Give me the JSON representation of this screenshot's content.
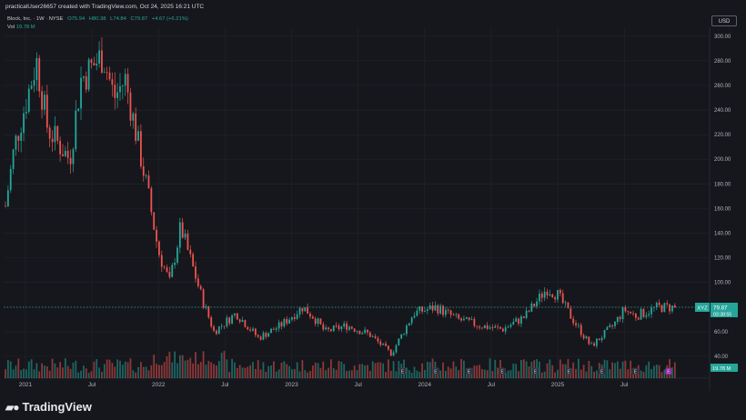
{
  "header": {
    "title": "practicalUser26657 created with TradingView.com, Oct 24, 2025 16:21 UTC"
  },
  "legend": {
    "symbol": "Block, Inc. · 1W · NYSE",
    "open": "O75.94",
    "high": "H80.38",
    "low": "L74.84",
    "close": "C79.87",
    "change": "+4.67 (+6.21%)",
    "vol_label": "Vol",
    "vol_value": "19.78 M"
  },
  "currency_button": "USD",
  "price_label": {
    "ticker": "XYZ",
    "price": "79.87",
    "countdown": "03:38:55"
  },
  "volume_label": "19.78 M",
  "footer": {
    "brand": "TradingView"
  },
  "colors": {
    "up": "#26a69a",
    "down": "#ef5350",
    "background": "#15171c",
    "grid": "#22252c",
    "price_line": "#26a69a"
  },
  "chart_data": {
    "type": "candlestick",
    "y_axis": {
      "ticks": [
        40,
        60,
        80,
        100,
        120,
        140,
        160,
        180,
        200,
        220,
        240,
        260,
        280,
        300
      ],
      "ylim": [
        40,
        305
      ],
      "position": "right"
    },
    "x_axis": {
      "labels": [
        "2021",
        "Jul",
        "2022",
        "Jul",
        "2023",
        "Jul",
        "2024",
        "Jul",
        "2025",
        "Jul"
      ]
    },
    "last_close": 79.87,
    "path": [
      [
        "2020-11",
        150
      ],
      [
        "2020-12",
        210
      ],
      [
        "2021-02",
        280
      ],
      [
        "2021-03",
        225
      ],
      [
        "2021-05",
        200
      ],
      [
        "2021-06",
        265
      ],
      [
        "2021-08",
        285
      ],
      [
        "2021-09",
        250
      ],
      [
        "2021-10",
        265
      ],
      [
        "2021-12",
        175
      ],
      [
        "2022-01",
        125
      ],
      [
        "2022-02",
        100
      ],
      [
        "2022-03",
        145
      ],
      [
        "2022-05",
        85
      ],
      [
        "2022-06",
        60
      ],
      [
        "2022-08",
        75
      ],
      [
        "2022-10",
        55
      ],
      [
        "2022-12",
        65
      ],
      [
        "2023-02",
        80
      ],
      [
        "2023-03",
        72
      ],
      [
        "2023-04",
        60
      ],
      [
        "2023-06",
        65
      ],
      [
        "2023-08",
        58
      ],
      [
        "2023-10",
        42
      ],
      [
        "2023-12",
        75
      ],
      [
        "2024-02",
        80
      ],
      [
        "2024-04",
        70
      ],
      [
        "2024-06",
        65
      ],
      [
        "2024-08",
        62
      ],
      [
        "2024-10",
        72
      ],
      [
        "2024-12",
        95
      ],
      [
        "2025-01",
        90
      ],
      [
        "2025-02",
        75
      ],
      [
        "2025-04",
        48
      ],
      [
        "2025-06",
        65
      ],
      [
        "2025-07",
        78
      ],
      [
        "2025-08",
        73
      ],
      [
        "2025-09",
        76
      ],
      [
        "2025-10",
        79.87
      ]
    ],
    "event_markers": [
      {
        "date": "2023-11",
        "letter": "E",
        "kind": "earnings"
      },
      {
        "date": "2024-02",
        "letter": "E",
        "kind": "earnings"
      },
      {
        "date": "2024-05",
        "letter": "E",
        "kind": "earnings"
      },
      {
        "date": "2024-08",
        "letter": "E",
        "kind": "earnings"
      },
      {
        "date": "2024-11",
        "letter": "E",
        "kind": "earnings"
      },
      {
        "date": "2025-02",
        "letter": "E",
        "kind": "earnings"
      },
      {
        "date": "2025-05",
        "letter": "E",
        "kind": "earnings"
      },
      {
        "date": "2025-08",
        "letter": "E",
        "kind": "earnings"
      },
      {
        "date": "2025-11",
        "letter": "E",
        "kind": "upcoming"
      }
    ]
  }
}
